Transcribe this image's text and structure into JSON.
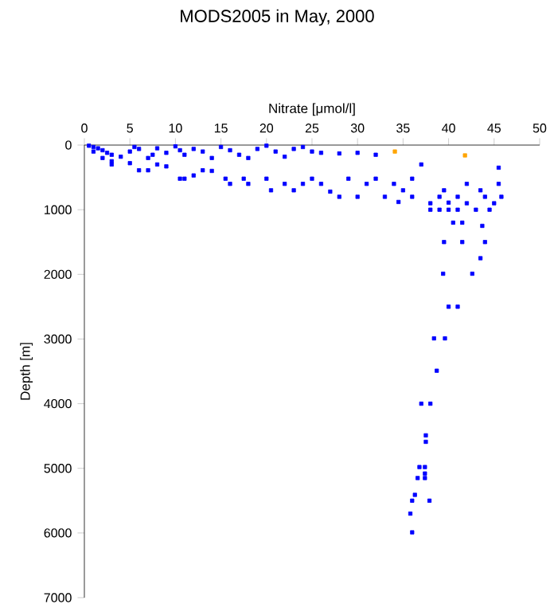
{
  "chart_data": {
    "type": "scatter",
    "title": "MODS2005 in May, 2000",
    "xlabel": "Nitrate [μmol/l]",
    "ylabel": "Depth [m]",
    "xlim": [
      0,
      50
    ],
    "ylim": [
      7000,
      0
    ],
    "xticks": [
      0,
      5,
      10,
      15,
      20,
      25,
      30,
      35,
      40,
      45,
      50
    ],
    "yticks": [
      0,
      1000,
      2000,
      3000,
      4000,
      5000,
      6000,
      7000
    ],
    "marker": "square",
    "series": [
      {
        "color": "#0000ff",
        "x": [
          0.5,
          1,
          1.5,
          2,
          2.5,
          3,
          1,
          2,
          3,
          4,
          5,
          5.5,
          6,
          7,
          7.5,
          8,
          9,
          10,
          10.5,
          11,
          12,
          13,
          14,
          15,
          16,
          17,
          18,
          19,
          20,
          21,
          22,
          23,
          24,
          25,
          26,
          28,
          30,
          32,
          3,
          5,
          6,
          7,
          8,
          9,
          10.5,
          11,
          12,
          13,
          14,
          15.5,
          16,
          17.5,
          18,
          20,
          20.5,
          22,
          23,
          24,
          25,
          26,
          27,
          28,
          29,
          30,
          31,
          32,
          33,
          34,
          35,
          34.5,
          36,
          36,
          37,
          38,
          38,
          39,
          39.5,
          40,
          40,
          41,
          42,
          42,
          43,
          43.5,
          44,
          44.5,
          45,
          45.5,
          45.5,
          45.8,
          41,
          39,
          40.5,
          41.5,
          43.7,
          39.5,
          41.5,
          44,
          43.5,
          39.4,
          42.6,
          40.0,
          41.0,
          38.4,
          39.6,
          38.7,
          37.0,
          38.0,
          37.5,
          37.5,
          36.8,
          37.4,
          37.4,
          36.6,
          37.4,
          36.3,
          36.0,
          37.9,
          35.8,
          36.0
        ],
        "values": [
          10,
          30,
          50,
          80,
          120,
          150,
          100,
          200,
          250,
          180,
          100,
          30,
          60,
          200,
          150,
          50,
          120,
          20,
          80,
          150,
          60,
          100,
          200,
          30,
          80,
          150,
          200,
          60,
          10,
          100,
          180,
          60,
          30,
          100,
          120,
          130,
          120,
          150,
          300,
          280,
          390,
          390,
          300,
          330,
          520,
          520,
          470,
          390,
          400,
          520,
          600,
          520,
          600,
          520,
          700,
          600,
          700,
          600,
          520,
          600,
          720,
          800,
          520,
          800,
          600,
          520,
          800,
          600,
          700,
          880,
          520,
          800,
          300,
          900,
          1000,
          800,
          700,
          890,
          1000,
          800,
          900,
          600,
          1000,
          700,
          800,
          1000,
          900,
          350,
          600,
          800,
          1000,
          1000,
          1200,
          1200,
          1250,
          1500,
          1500,
          1500,
          1750,
          1990,
          1990,
          2500,
          2500,
          2990,
          2990,
          3490,
          4000,
          4000,
          4490,
          4590,
          4980,
          4980,
          5080,
          5150,
          5150,
          5410,
          5500,
          5500,
          5700,
          5990
        ]
      },
      {
        "color": "#ffa500",
        "x": [
          34.1,
          41.8
        ],
        "values": [
          100,
          160
        ]
      }
    ]
  }
}
